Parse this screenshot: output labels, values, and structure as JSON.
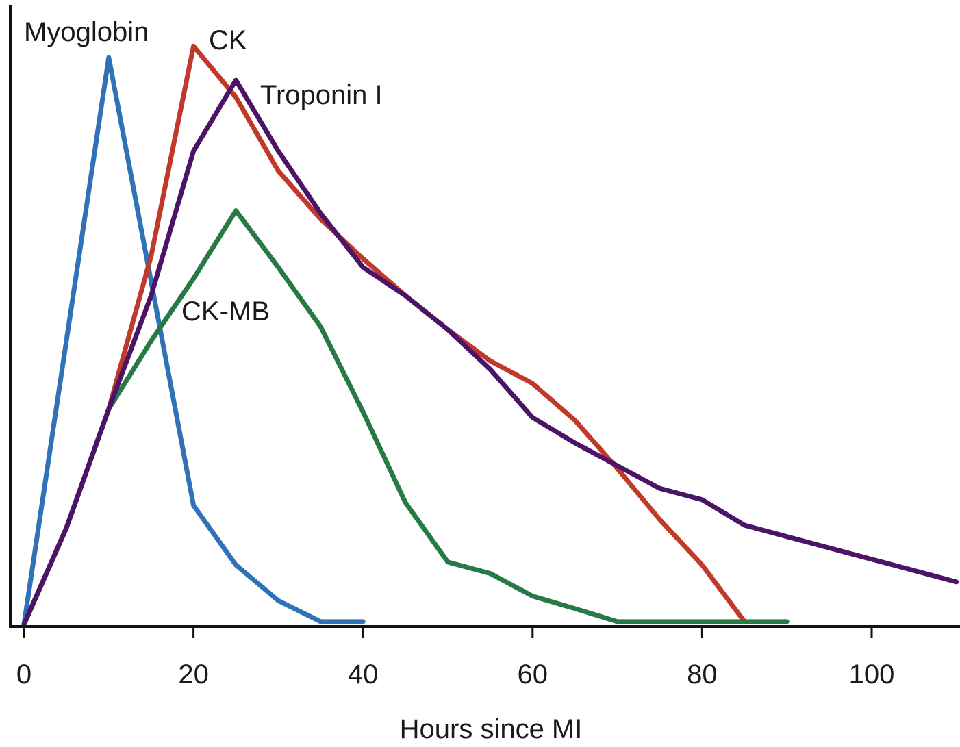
{
  "chart_data": {
    "type": "line",
    "title": "",
    "xlabel": "Hours since MI",
    "ylabel": "",
    "xlim": [
      0,
      110
    ],
    "ylim": [
      0,
      100
    ],
    "y_ticks_shown": false,
    "grid": false,
    "legend": "inline labels",
    "x_ticks": [
      0,
      20,
      40,
      60,
      80,
      100
    ],
    "series": [
      {
        "name": "Myoglobin",
        "color": "#2f72b8",
        "x": [
          0,
          10,
          20,
          25,
          30,
          35,
          40
        ],
        "y": [
          0,
          100,
          21,
          10.5,
          4.2,
          0.5,
          0.5
        ]
      },
      {
        "name": "CK",
        "color": "#c0392b",
        "x": [
          0,
          5,
          10,
          15,
          20,
          25,
          30,
          35,
          40,
          45,
          50,
          55,
          60,
          65,
          70,
          75,
          80,
          85
        ],
        "y": [
          0,
          17,
          38,
          65,
          102,
          93,
          80,
          71.5,
          64.5,
          58,
          52,
          46.5,
          42.5,
          36,
          27.5,
          18.5,
          10.5,
          0.5
        ]
      },
      {
        "name": "CK-MB",
        "color": "#277a46",
        "x": [
          0,
          5,
          10,
          15,
          20,
          25,
          30,
          35,
          40,
          45,
          50,
          55,
          60,
          65,
          70,
          75,
          80,
          85,
          90
        ],
        "y": [
          0,
          17,
          38,
          50,
          61,
          73,
          63,
          52.5,
          37.5,
          21.5,
          11,
          9,
          5,
          2.8,
          0.5,
          0.5,
          0.5,
          0.5,
          0.5
        ]
      },
      {
        "name": "Troponin I",
        "color": "#4b1466",
        "x": [
          0,
          5,
          10,
          15,
          20,
          25,
          30,
          35,
          40,
          45,
          50,
          55,
          60,
          65,
          70,
          75,
          80,
          85,
          90,
          95,
          100,
          105,
          110
        ],
        "y": [
          0,
          17,
          38,
          58,
          83.5,
          96,
          83.5,
          72.5,
          63,
          58,
          52,
          45,
          36.5,
          32,
          28,
          24,
          22,
          17.5,
          15.5,
          13.5,
          11.5,
          9.5,
          7.5
        ]
      }
    ],
    "series_labels": [
      {
        "text": "Myoglobin",
        "series": "Myoglobin"
      },
      {
        "text": "CK",
        "series": "CK"
      },
      {
        "text": "Troponin I",
        "series": "Troponin I"
      },
      {
        "text": "CK-MB",
        "series": "CK-MB"
      }
    ]
  }
}
